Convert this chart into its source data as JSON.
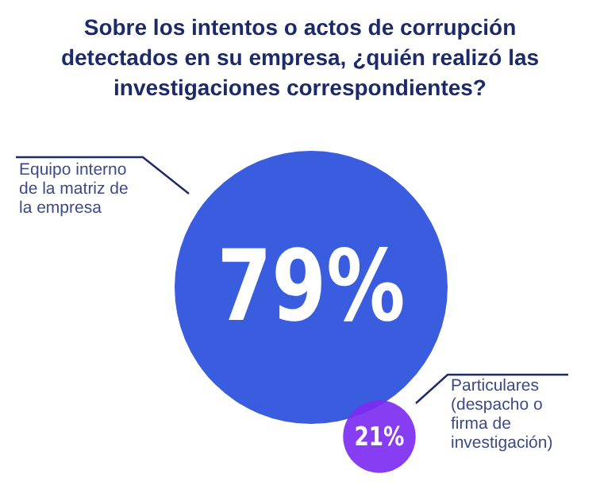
{
  "chart_data": {
    "type": "other",
    "title": "Sobre los intentos o actos de corrupción detectados en su empresa, ¿quién realizó las investigaciones correspondientes?",
    "categories": [
      "Equipo interno de la matriz de la empresa",
      "Particulares (despacho o firma de investigación)"
    ],
    "values": [
      79,
      21
    ],
    "value_labels": [
      "79%",
      "21%"
    ],
    "colors": [
      "#3a5de0",
      "#7d2cf0"
    ]
  }
}
